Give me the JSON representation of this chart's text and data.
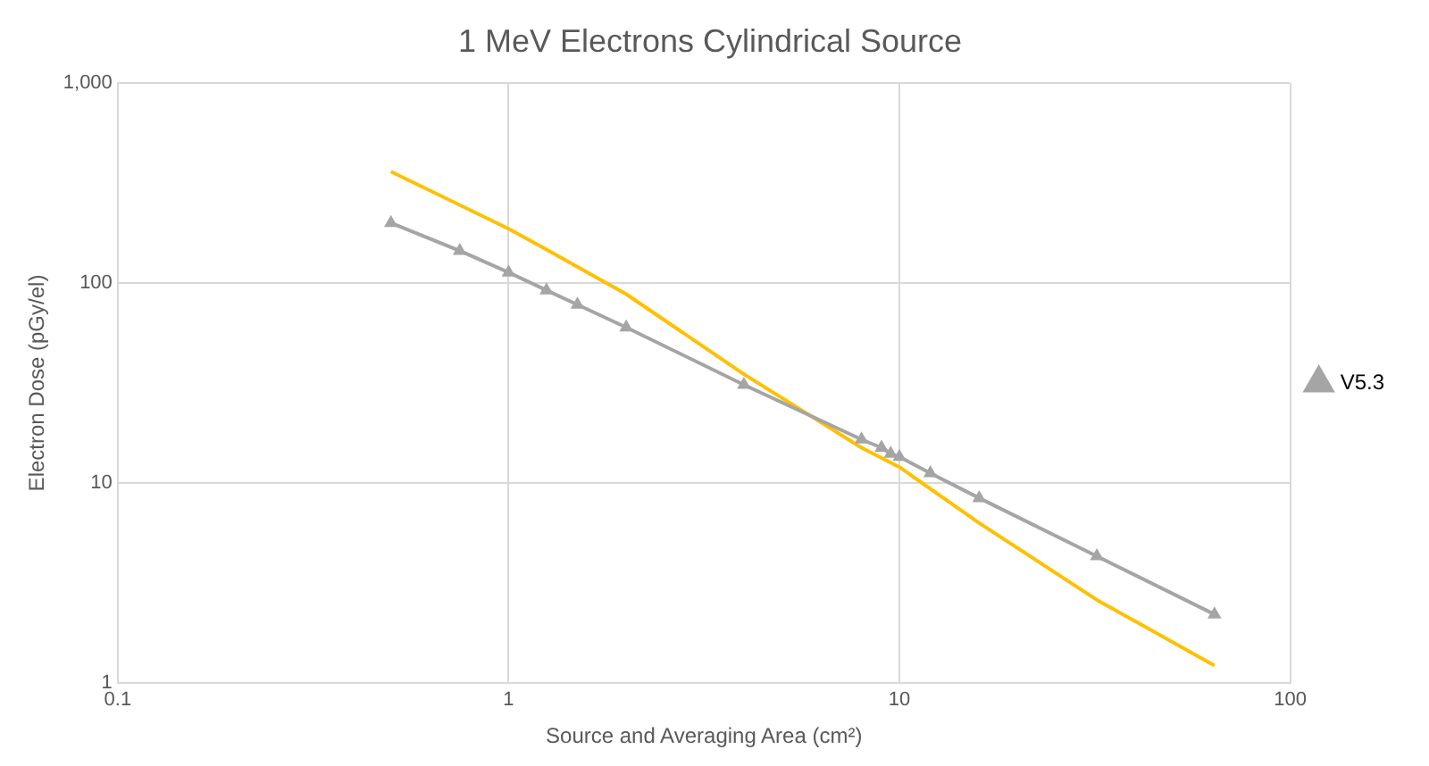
{
  "chart_data": {
    "type": "line",
    "title": "1 MeV Electrons Cylindrical Source",
    "xlabel": "Source and Averaging Area (cm²)",
    "ylabel": "Electron Dose (pGy/el)",
    "log": "xy",
    "grid": true,
    "legend": "right",
    "line_style": "solid",
    "xlim": [
      0.1,
      100
    ],
    "xticks": [
      0.1,
      1,
      10,
      100
    ],
    "ylim": [
      1,
      1000
    ],
    "yticks": [
      1,
      10,
      100,
      {
        "value": 1000,
        "label": "1,000"
      }
    ],
    "series": [
      {
        "name": "V5.3",
        "color": "#a5a5a5",
        "marker": "triangle",
        "x": [
          0.5,
          0.75,
          1,
          1.25,
          1.5,
          2,
          4,
          8,
          9,
          9.5,
          10,
          12,
          16,
          32,
          64
        ],
        "values": [
          200,
          145,
          113,
          92,
          78,
          60,
          31,
          16.5,
          15,
          14,
          13.5,
          11.2,
          8.4,
          4.3,
          2.2
        ]
      },
      {
        "color": "#ffc000",
        "marker": "none",
        "x": [
          0.5,
          1,
          1.25,
          2,
          4,
          8,
          10,
          16,
          32,
          64
        ],
        "values": [
          361,
          187,
          147,
          88,
          35,
          15,
          12,
          6.3,
          2.6,
          1.22
        ]
      }
    ]
  }
}
